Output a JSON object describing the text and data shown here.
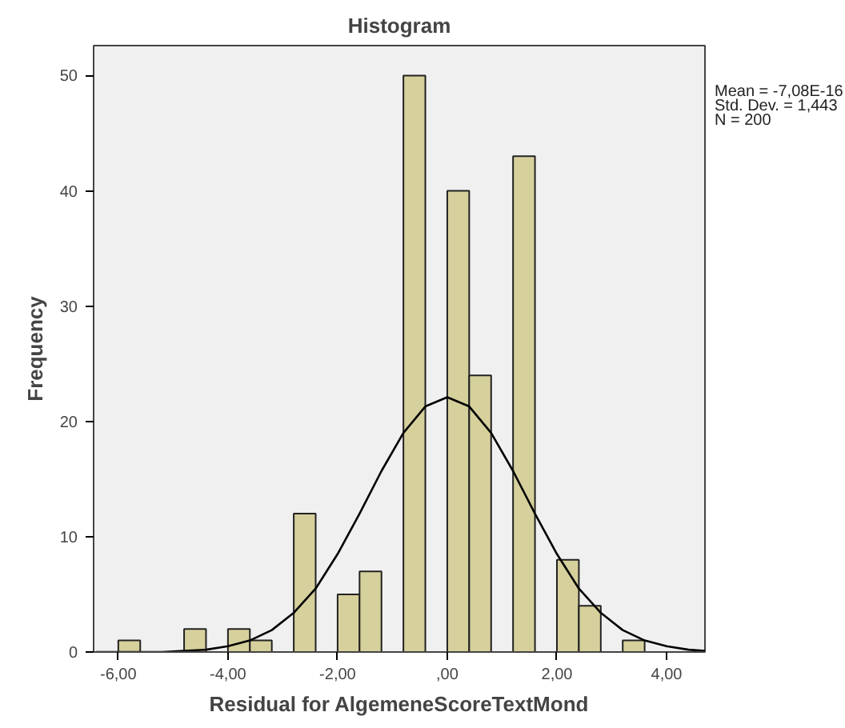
{
  "chart_data": {
    "type": "histogram",
    "title": "Histogram",
    "xlabel": "Residual for AlgemeneScoreTextMond",
    "ylabel": "Frequency",
    "bins": [
      -6.0,
      -5.6,
      -5.2,
      -4.8,
      -4.4,
      -4.0,
      -3.6,
      -3.2,
      -2.8,
      -2.4,
      -2.0,
      -1.6,
      -1.2,
      -0.8,
      -0.4,
      0.0,
      0.4,
      0.8,
      1.2,
      1.6,
      2.0,
      2.4,
      2.8,
      3.2,
      3.6
    ],
    "values": [
      1,
      0,
      0,
      2,
      0,
      2,
      1,
      0,
      12,
      0,
      5,
      7,
      0,
      50,
      0,
      40,
      24,
      0,
      43,
      0,
      8,
      4,
      0,
      1
    ],
    "color": "#d6d09c",
    "series": [
      {
        "type": "line",
        "color": "#000000",
        "x": [
          -6.4,
          -6.0,
          -5.6,
          -5.2,
          -4.8,
          -4.4,
          -4.0,
          -3.6,
          -3.2,
          -2.8,
          -2.4,
          -2.0,
          -1.6,
          -1.2,
          -0.8,
          -0.4,
          0.0,
          0.4,
          0.8,
          1.2,
          1.6,
          2.0,
          2.4,
          2.8,
          3.2,
          3.6,
          4.0,
          4.4,
          4.7
        ],
        "values": [
          0.0,
          0.0,
          0.0,
          0.0,
          0.1,
          0.2,
          0.5,
          1.0,
          1.9,
          3.4,
          5.5,
          8.5,
          12.0,
          15.7,
          19.0,
          21.3,
          22.1,
          21.3,
          19.0,
          15.7,
          12.0,
          8.5,
          5.5,
          3.4,
          1.9,
          1.0,
          0.5,
          0.2,
          0.1
        ]
      }
    ],
    "xlim": [
      -6.45,
      4.7
    ],
    "ylim": [
      0,
      52.6
    ],
    "xticks": [
      {
        "value": -6,
        "label": "-6,00"
      },
      {
        "value": -4,
        "label": "-4,00"
      },
      {
        "value": -2,
        "label": "-2,00"
      },
      {
        "value": 0,
        "label": ",00"
      },
      {
        "value": 2,
        "label": "2,00"
      },
      {
        "value": 4,
        "label": "4,00"
      }
    ],
    "yticks": [
      0,
      10,
      20,
      30,
      40,
      50
    ],
    "grid": false,
    "legend": false,
    "annotations": [
      "Mean = -7,08E-16",
      "Std. Dev. = 1,443",
      "N = 200"
    ]
  }
}
